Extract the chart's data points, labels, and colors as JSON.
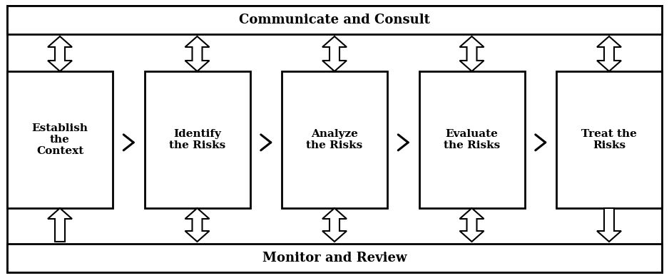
{
  "title_top": "Communicate and Consult",
  "title_bottom": "Monitor and Review",
  "boxes": [
    "Establish\nthe\nContext",
    "Identify\nthe Risks",
    "Analyze\nthe Risks",
    "Evaluate\nthe Risks",
    "Treat the\nRisks"
  ],
  "bg_color": "#ffffff",
  "box_edge_color": "#000000",
  "font_size_boxes": 11,
  "font_size_bars": 13,
  "fig_width": 9.38,
  "fig_height": 3.9
}
